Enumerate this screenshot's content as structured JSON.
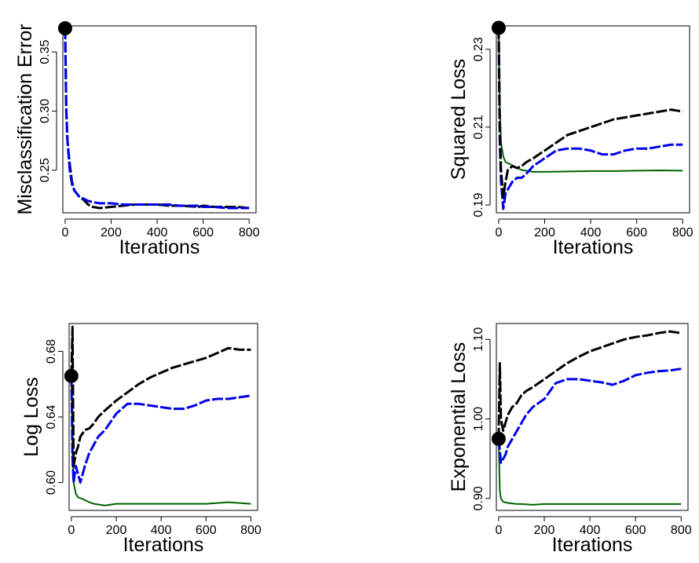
{
  "colors": {
    "black": "#000000",
    "blue": "#0000ee",
    "green": "#006400",
    "teal": "#00868b"
  },
  "chart_data": [
    {
      "id": "misclass",
      "type": "line",
      "xlabel": "Iterations",
      "ylabel": "Misclassification Error",
      "xticks": [
        0,
        200,
        400,
        600,
        800
      ],
      "yticks": [
        0.25,
        0.3,
        0.35
      ],
      "xlim": [
        -10,
        830
      ],
      "ylim": [
        0.214,
        0.372
      ],
      "marker": {
        "x": 0,
        "y": 0.37
      },
      "series": [
        {
          "color": "#000000",
          "dashed": true,
          "x": [
            0,
            5,
            10,
            20,
            30,
            40,
            60,
            80,
            100,
            120,
            150,
            200,
            250,
            300,
            350,
            400,
            450,
            500,
            580,
            600,
            650,
            700,
            750,
            800
          ],
          "y": [
            0.37,
            0.3,
            0.275,
            0.255,
            0.24,
            0.233,
            0.228,
            0.225,
            0.221,
            0.219,
            0.218,
            0.219,
            0.22,
            0.221,
            0.221,
            0.221,
            0.22,
            0.22,
            0.219,
            0.22,
            0.219,
            0.219,
            0.219,
            0.218
          ]
        },
        {
          "color": "#0000ee",
          "dashed": true,
          "x": [
            0,
            5,
            10,
            20,
            30,
            40,
            60,
            80,
            100,
            120,
            150,
            200,
            250,
            300,
            350,
            400,
            450,
            500,
            580,
            600,
            650,
            700,
            750,
            800
          ],
          "y": [
            0.37,
            0.3,
            0.275,
            0.25,
            0.238,
            0.233,
            0.228,
            0.226,
            0.224,
            0.223,
            0.222,
            0.222,
            0.221,
            0.221,
            0.221,
            0.221,
            0.221,
            0.22,
            0.22,
            0.219,
            0.219,
            0.218,
            0.218,
            0.218
          ]
        }
      ]
    },
    {
      "id": "squared",
      "type": "line",
      "xlabel": "Iterations",
      "ylabel": "Squared Loss",
      "xticks": [
        0,
        200,
        400,
        600,
        800
      ],
      "yticks": [
        0.19,
        0.21,
        0.23
      ],
      "xlim": [
        -10,
        830
      ],
      "ylim": [
        0.188,
        0.236
      ],
      "marker": {
        "x": 0,
        "y": 0.2355
      },
      "series": [
        {
          "color": "#006400",
          "dashed": false,
          "x": [
            0,
            5,
            10,
            20,
            30,
            50,
            80,
            100,
            150,
            200,
            300,
            400,
            500,
            600,
            700,
            800
          ],
          "y": [
            0.2355,
            0.215,
            0.206,
            0.2025,
            0.201,
            0.2005,
            0.1995,
            0.199,
            0.1985,
            0.1985,
            0.1986,
            0.1987,
            0.1987,
            0.1988,
            0.1989,
            0.1988
          ]
        },
        {
          "color": "#0000ee",
          "dashed": true,
          "x": [
            0,
            5,
            10,
            20,
            30,
            40,
            60,
            80,
            100,
            120,
            150,
            200,
            250,
            300,
            350,
            400,
            450,
            500,
            550,
            600,
            650,
            700,
            750,
            800
          ],
          "y": [
            0.2355,
            0.206,
            0.196,
            0.189,
            0.193,
            0.194,
            0.196,
            0.197,
            0.197,
            0.198,
            0.2,
            0.202,
            0.204,
            0.2045,
            0.2045,
            0.204,
            0.203,
            0.203,
            0.204,
            0.2045,
            0.2045,
            0.205,
            0.2055,
            0.2055
          ]
        },
        {
          "color": "#000000",
          "dashed": true,
          "x": [
            0,
            5,
            10,
            20,
            30,
            40,
            60,
            80,
            100,
            120,
            150,
            200,
            250,
            300,
            350,
            400,
            450,
            500,
            550,
            600,
            650,
            700,
            750,
            800
          ],
          "y": [
            0.2355,
            0.21,
            0.199,
            0.192,
            0.196,
            0.199,
            0.2,
            0.1995,
            0.2,
            0.201,
            0.202,
            0.204,
            0.206,
            0.208,
            0.209,
            0.21,
            0.211,
            0.212,
            0.2125,
            0.213,
            0.2135,
            0.214,
            0.2145,
            0.214
          ]
        }
      ]
    },
    {
      "id": "log",
      "type": "line",
      "xlabel": "Iterations",
      "ylabel": "Log Loss",
      "xticks": [
        0,
        200,
        400,
        600,
        800
      ],
      "yticks": [
        0.6,
        0.64,
        0.68
      ],
      "xlim": [
        -10,
        830
      ],
      "ylim": [
        0.583,
        0.697
      ],
      "marker": {
        "x": 0,
        "y": 0.665
      },
      "series": [
        {
          "color": "#006400",
          "dashed": false,
          "x": [
            0,
            5,
            10,
            20,
            30,
            50,
            80,
            100,
            150,
            200,
            300,
            400,
            500,
            600,
            700,
            800
          ],
          "y": [
            0.665,
            0.62,
            0.6,
            0.593,
            0.591,
            0.59,
            0.588,
            0.587,
            0.586,
            0.587,
            0.587,
            0.587,
            0.587,
            0.587,
            0.588,
            0.587
          ]
        },
        {
          "color": "#0000ee",
          "dashed": true,
          "x": [
            0,
            5,
            10,
            20,
            30,
            40,
            60,
            80,
            100,
            120,
            150,
            200,
            250,
            300,
            350,
            400,
            450,
            500,
            550,
            600,
            650,
            700,
            750,
            800
          ],
          "y": [
            0.665,
            0.615,
            0.6,
            0.61,
            0.605,
            0.6,
            0.61,
            0.618,
            0.623,
            0.628,
            0.632,
            0.642,
            0.648,
            0.648,
            0.647,
            0.646,
            0.645,
            0.645,
            0.647,
            0.65,
            0.651,
            0.651,
            0.652,
            0.653
          ]
        },
        {
          "color": "#000000",
          "dashed": true,
          "x": [
            0,
            5,
            10,
            20,
            30,
            40,
            60,
            80,
            100,
            120,
            150,
            200,
            250,
            300,
            350,
            400,
            450,
            500,
            550,
            600,
            650,
            700,
            750,
            800
          ],
          "y": [
            0.665,
            0.695,
            0.61,
            0.618,
            0.622,
            0.628,
            0.632,
            0.633,
            0.636,
            0.64,
            0.644,
            0.65,
            0.655,
            0.66,
            0.664,
            0.667,
            0.67,
            0.672,
            0.674,
            0.676,
            0.679,
            0.682,
            0.681,
            0.681
          ]
        }
      ]
    },
    {
      "id": "exponential",
      "type": "line",
      "xlabel": "Iterations",
      "ylabel": "Exponential Loss",
      "xticks": [
        0,
        200,
        400,
        600,
        800
      ],
      "yticks": [
        0.9,
        1.0,
        1.1
      ],
      "xlim": [
        -10,
        830
      ],
      "ylim": [
        0.885,
        1.12
      ],
      "marker": {
        "x": 0,
        "y": 0.975
      },
      "series": [
        {
          "color": "#006400",
          "dashed": false,
          "x": [
            0,
            5,
            10,
            20,
            30,
            50,
            80,
            100,
            150,
            200,
            300,
            400,
            500,
            600,
            700,
            800
          ],
          "y": [
            0.975,
            0.91,
            0.9,
            0.896,
            0.895,
            0.894,
            0.893,
            0.893,
            0.892,
            0.893,
            0.893,
            0.893,
            0.893,
            0.893,
            0.893,
            0.893
          ]
        },
        {
          "color": "#0000ee",
          "dashed": true,
          "x": [
            0,
            5,
            10,
            20,
            30,
            40,
            60,
            80,
            100,
            120,
            150,
            200,
            250,
            300,
            350,
            400,
            450,
            500,
            550,
            600,
            650,
            700,
            750,
            800
          ],
          "y": [
            0.975,
            0.96,
            0.945,
            0.95,
            0.955,
            0.965,
            0.975,
            0.985,
            0.995,
            1.005,
            1.015,
            1.025,
            1.045,
            1.05,
            1.05,
            1.048,
            1.046,
            1.043,
            1.048,
            1.055,
            1.058,
            1.06,
            1.061,
            1.063
          ]
        },
        {
          "color": "#000000",
          "dashed": true,
          "x": [
            0,
            5,
            10,
            20,
            30,
            40,
            60,
            80,
            100,
            120,
            150,
            200,
            250,
            300,
            350,
            400,
            450,
            500,
            550,
            600,
            650,
            700,
            750,
            800
          ],
          "y": [
            0.975,
            1.07,
            1.0,
            0.985,
            0.995,
            1.005,
            1.015,
            1.02,
            1.03,
            1.035,
            1.04,
            1.05,
            1.06,
            1.07,
            1.078,
            1.085,
            1.09,
            1.095,
            1.1,
            1.103,
            1.105,
            1.108,
            1.11,
            1.108
          ]
        }
      ]
    }
  ]
}
